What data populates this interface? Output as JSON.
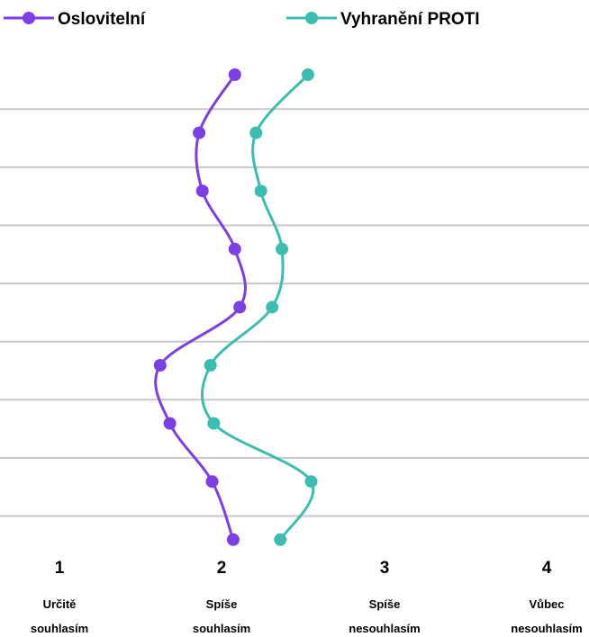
{
  "chart_data": {
    "type": "line",
    "orientation": "vertical-profile",
    "legend": {
      "placement": "top",
      "items": [
        {
          "name": "Oslovitelní",
          "color": "#7b3fe4"
        },
        {
          "name": "Vyhranění PROTI",
          "color": "#3dbdb0"
        }
      ]
    },
    "x_axis": {
      "range": [
        1,
        4
      ],
      "ticks": [
        {
          "value": 1,
          "number": "1",
          "line1": "Určitě",
          "line2": "souhlasím"
        },
        {
          "value": 2,
          "number": "2",
          "line1": "Spíše",
          "line2": "souhlasím"
        },
        {
          "value": 3,
          "number": "3",
          "line1": "Spíše",
          "line2": "nesouhlasím"
        },
        {
          "value": 4,
          "number": "4",
          "line1": "Vůbec",
          "line2": "nesouhlasím"
        }
      ]
    },
    "item_count": 9,
    "grid": true,
    "series": [
      {
        "name": "Oslovitelní",
        "color": "#7b3fe4",
        "values": [
          2.08,
          1.86,
          1.88,
          2.08,
          2.11,
          1.62,
          1.68,
          1.94,
          2.07
        ]
      },
      {
        "name": "Vyhranění PROTI",
        "color": "#3dbdb0",
        "values": [
          2.53,
          2.21,
          2.24,
          2.37,
          2.31,
          1.93,
          1.95,
          2.55,
          2.36
        ]
      }
    ]
  }
}
